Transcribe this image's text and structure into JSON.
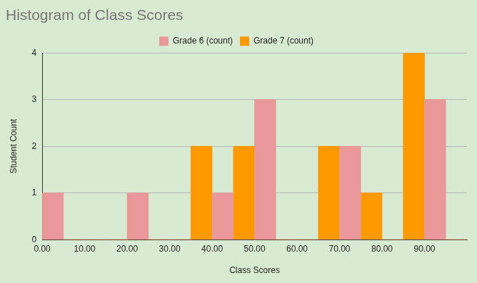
{
  "chart_data": {
    "type": "histogram",
    "title": "Histogram of Class Scores",
    "x_label": "Class Scores",
    "y_label": "Student Count",
    "bins": [
      0,
      5,
      10,
      15,
      20,
      25,
      30,
      35,
      40,
      45,
      50,
      55,
      60,
      65,
      70,
      75,
      80,
      85,
      90,
      95,
      100
    ],
    "series": [
      {
        "name": "Grade 6 (count)",
        "color": "#ea9999",
        "values": [
          1,
          0,
          0,
          0,
          1,
          0,
          0,
          0,
          1,
          0,
          3,
          0,
          0,
          0,
          2,
          0,
          0,
          0,
          3,
          0
        ]
      },
      {
        "name": "Grade 7 (count)",
        "color": "#ff9900",
        "values": [
          0,
          0,
          0,
          0,
          0,
          0,
          0,
          2,
          0,
          2,
          0,
          0,
          0,
          2,
          0,
          1,
          0,
          4,
          0,
          0
        ]
      }
    ],
    "xlim": [
      0,
      100
    ],
    "xticks": [
      {
        "value": 0,
        "label": "0.00"
      },
      {
        "value": 10,
        "label": "10.00"
      },
      {
        "value": 20,
        "label": "20.00"
      },
      {
        "value": 30,
        "label": "30.00"
      },
      {
        "value": 40,
        "label": "40.00"
      },
      {
        "value": 50,
        "label": "50.00"
      },
      {
        "value": 60,
        "label": "60.00"
      },
      {
        "value": 70,
        "label": "70.00"
      },
      {
        "value": 80,
        "label": "80.00"
      },
      {
        "value": 90,
        "label": "90.00"
      }
    ],
    "ylim": [
      0,
      4
    ],
    "yticks": [
      0,
      1,
      2,
      3,
      4
    ],
    "grid": true,
    "legend": "top"
  }
}
